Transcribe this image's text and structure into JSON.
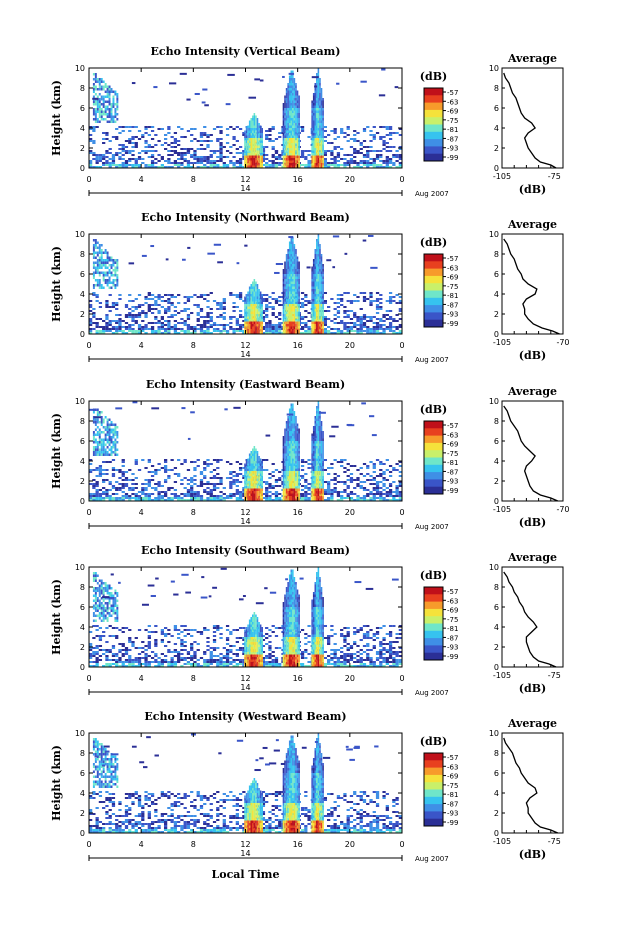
{
  "figure": {
    "xlabel": "Local Time",
    "date_label": "Aug 2007",
    "day_label": "14",
    "ylabel": "Height (km)",
    "colorbar_unit": "(dB)",
    "profile_title": "Average",
    "profile_xlabel": "(dB)"
  },
  "chart_data": [
    {
      "type": "heatmap",
      "title": "Echo Intensity (Vertical Beam)",
      "xlabel": "Local Time",
      "ylabel": "Height (km)",
      "x_ticks": [
        "0",
        "4",
        "8",
        "12",
        "16",
        "20",
        "0"
      ],
      "y_ticks": [
        "0",
        "2",
        "4",
        "6",
        "8",
        "10"
      ],
      "xlim": [
        0,
        24
      ],
      "ylim": [
        0,
        10
      ],
      "colorbar": {
        "label": "(dB)",
        "ticks": [
          "-57",
          "-63",
          "-69",
          "-75",
          "-81",
          "-87",
          "-93",
          "-99"
        ]
      },
      "profile": {
        "title": "Average",
        "xlabel": "(dB)",
        "x_ticks": [
          "-105",
          "-75"
        ],
        "xlim": [
          -105,
          -70
        ],
        "y_ticks": [
          "0",
          "2",
          "4",
          "6",
          "8",
          "10"
        ],
        "heights": [
          0,
          0.3,
          0.6,
          1,
          1.5,
          2,
          2.5,
          3,
          3.5,
          4,
          4.5,
          5,
          5.5,
          6,
          6.5,
          7,
          7.5,
          8,
          8.5,
          9,
          9.5
        ],
        "values": [
          -74,
          -77,
          -83,
          -86,
          -88,
          -90,
          -91,
          -92,
          -90,
          -86,
          -88,
          -92,
          -94,
          -95,
          -96,
          -97,
          -99,
          -100,
          -101,
          -103,
          -104
        ]
      }
    },
    {
      "type": "heatmap",
      "title": "Echo Intensity (Northward Beam)",
      "xlabel": "Local Time",
      "ylabel": "Height (km)",
      "x_ticks": [
        "0",
        "4",
        "8",
        "12",
        "16",
        "20",
        "0"
      ],
      "y_ticks": [
        "0",
        "2",
        "4",
        "6",
        "8",
        "10"
      ],
      "xlim": [
        0,
        24
      ],
      "ylim": [
        0,
        10
      ],
      "colorbar": {
        "label": "(dB)",
        "ticks": [
          "-57",
          "-63",
          "-69",
          "-75",
          "-81",
          "-87",
          "-93",
          "-99"
        ]
      },
      "profile": {
        "title": "Average",
        "xlabel": "(dB)",
        "x_ticks": [
          "-105",
          "-70"
        ],
        "xlim": [
          -105,
          -70
        ],
        "y_ticks": [
          "0",
          "2",
          "4",
          "6",
          "8",
          "10"
        ],
        "heights": [
          0,
          0.3,
          0.6,
          1,
          1.5,
          2,
          2.5,
          3,
          3.5,
          4,
          4.5,
          5,
          5.5,
          6,
          6.5,
          7,
          7.5,
          8,
          8.5,
          9,
          9.5
        ],
        "values": [
          -72,
          -76,
          -82,
          -87,
          -90,
          -92,
          -92,
          -93,
          -91,
          -86,
          -85,
          -90,
          -93,
          -94,
          -96,
          -97,
          -98,
          -100,
          -101,
          -102,
          -104
        ]
      }
    },
    {
      "type": "heatmap",
      "title": "Echo Intensity (Eastward Beam)",
      "xlabel": "Local Time",
      "ylabel": "Height (km)",
      "x_ticks": [
        "0",
        "4",
        "8",
        "12",
        "16",
        "20",
        "0"
      ],
      "y_ticks": [
        "0",
        "2",
        "4",
        "6",
        "8",
        "10"
      ],
      "xlim": [
        0,
        24
      ],
      "ylim": [
        0,
        10
      ],
      "colorbar": {
        "label": "(dB)",
        "ticks": [
          "-57",
          "-63",
          "-69",
          "-75",
          "-81",
          "-87",
          "-93",
          "-99"
        ]
      },
      "profile": {
        "title": "Average",
        "xlabel": "(dB)",
        "x_ticks": [
          "-105",
          "-70"
        ],
        "xlim": [
          -105,
          -70
        ],
        "y_ticks": [
          "0",
          "2",
          "4",
          "6",
          "8",
          "10"
        ],
        "heights": [
          0,
          0.3,
          0.6,
          1,
          1.5,
          2,
          2.5,
          3,
          3.5,
          4,
          4.5,
          5,
          5.5,
          6,
          6.5,
          7,
          7.5,
          8,
          8.5,
          9,
          9.5
        ],
        "values": [
          -73,
          -77,
          -83,
          -87,
          -89,
          -90,
          -91,
          -92,
          -91,
          -88,
          -86,
          -89,
          -92,
          -94,
          -95,
          -96,
          -98,
          -100,
          -101,
          -102,
          -104
        ]
      }
    },
    {
      "type": "heatmap",
      "title": "Echo Intensity (Southward Beam)",
      "xlabel": "Local Time",
      "ylabel": "Height (km)",
      "x_ticks": [
        "0",
        "4",
        "8",
        "12",
        "16",
        "20",
        "0"
      ],
      "y_ticks": [
        "0",
        "2",
        "4",
        "6",
        "8",
        "10"
      ],
      "xlim": [
        0,
        24
      ],
      "ylim": [
        0,
        10
      ],
      "colorbar": {
        "label": "(dB)",
        "ticks": [
          "-57",
          "-63",
          "-69",
          "-75",
          "-81",
          "-87",
          "-93",
          "-99"
        ]
      },
      "profile": {
        "title": "Average",
        "xlabel": "(dB)",
        "x_ticks": [
          "-105",
          "-75"
        ],
        "xlim": [
          -105,
          -70
        ],
        "y_ticks": [
          "0",
          "2",
          "4",
          "6",
          "8",
          "10"
        ],
        "heights": [
          0,
          0.3,
          0.6,
          1,
          1.5,
          2,
          2.5,
          3,
          3.5,
          4,
          4.5,
          5,
          5.5,
          6,
          6.5,
          7,
          7.5,
          8,
          8.5,
          9,
          9.5
        ],
        "values": [
          -74,
          -78,
          -84,
          -87,
          -89,
          -90,
          -91,
          -91,
          -88,
          -85,
          -87,
          -90,
          -92,
          -93,
          -95,
          -96,
          -98,
          -99,
          -101,
          -102,
          -104
        ]
      }
    },
    {
      "type": "heatmap",
      "title": "Echo Intensity (Westward Beam)",
      "xlabel": "Local Time",
      "ylabel": "Height (km)",
      "x_ticks": [
        "0",
        "4",
        "8",
        "12",
        "16",
        "20",
        "0"
      ],
      "y_ticks": [
        "0",
        "2",
        "4",
        "6",
        "8",
        "10"
      ],
      "xlim": [
        0,
        24
      ],
      "ylim": [
        0,
        10
      ],
      "colorbar": {
        "label": "(dB)",
        "ticks": [
          "-57",
          "-63",
          "-69",
          "-75",
          "-81",
          "-87",
          "-93",
          "-99"
        ]
      },
      "profile": {
        "title": "Average",
        "xlabel": "(dB)",
        "x_ticks": [
          "-105",
          "-75"
        ],
        "xlim": [
          -105,
          -70
        ],
        "y_ticks": [
          "0",
          "2",
          "4",
          "6",
          "8",
          "10"
        ],
        "heights": [
          0,
          0.3,
          0.6,
          1,
          1.5,
          2,
          2.5,
          3,
          3.5,
          4,
          4.5,
          5,
          5.5,
          6,
          6.5,
          7,
          7.5,
          8,
          8.5,
          9,
          9.5
        ],
        "values": [
          -73,
          -77,
          -83,
          -86,
          -88,
          -90,
          -90,
          -91,
          -89,
          -85,
          -86,
          -90,
          -92,
          -94,
          -95,
          -97,
          -98,
          -99,
          -101,
          -103,
          -104
        ]
      }
    }
  ],
  "colors": {
    "scale": [
      "#2b2f96",
      "#3a55c8",
      "#3f8fe6",
      "#36c3ef",
      "#6fe6c9",
      "#c9f06a",
      "#f5e23b",
      "#f79b2b",
      "#e8401f",
      "#c0101a"
    ]
  }
}
